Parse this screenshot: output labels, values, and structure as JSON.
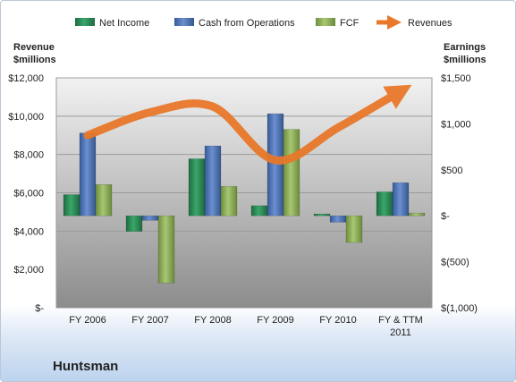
{
  "chart_data": {
    "type": "bar",
    "title": "Huntsman",
    "categories": [
      "FY 2006",
      "FY 2007",
      "FY 2008",
      "FY 2009",
      "FY 2010",
      "FY & TTM 2011"
    ],
    "left_axis": {
      "label_line1": "Revenue",
      "label_line2": "$millions",
      "ylim": [
        0,
        12000
      ],
      "ticks": [
        {
          "value": 12000,
          "label": "$12,000"
        },
        {
          "value": 10000,
          "label": "$10,000"
        },
        {
          "value": 8000,
          "label": "$8,000"
        },
        {
          "value": 6000,
          "label": "$6,000"
        },
        {
          "value": 4000,
          "label": "$4,000"
        },
        {
          "value": 2000,
          "label": "$2,000"
        },
        {
          "value": 0,
          "label": "$-"
        }
      ]
    },
    "right_axis": {
      "label_line1": "Earnings",
      "label_line2": "$millions",
      "ylim": [
        -1000,
        1500
      ],
      "ticks": [
        {
          "value": 1500,
          "label": "$1,500"
        },
        {
          "value": 1000,
          "label": "$1,000"
        },
        {
          "value": 500,
          "label": "$500"
        },
        {
          "value": 0,
          "label": "$-"
        },
        {
          "value": -500,
          "label": "$(500)"
        },
        {
          "value": -1000,
          "label": "$(1,000)"
        }
      ]
    },
    "series": [
      {
        "name": "Net Income",
        "kind": "bar",
        "axis": "right",
        "color": "#2e8b57",
        "values": [
          230,
          -170,
          620,
          110,
          20,
          260
        ]
      },
      {
        "name": "Cash from Operations",
        "kind": "bar",
        "axis": "right",
        "color": "#4f74b5",
        "values": [
          900,
          -50,
          760,
          1110,
          -70,
          360
        ]
      },
      {
        "name": "FCF",
        "kind": "bar",
        "axis": "right",
        "color": "#8fb05a",
        "values": [
          340,
          -730,
          320,
          940,
          -290,
          30
        ]
      },
      {
        "name": "Revenues",
        "kind": "line",
        "axis": "left",
        "color": "#e8782a",
        "values": [
          9000,
          10200,
          10500,
          7700,
          9400,
          11300
        ]
      }
    ],
    "grid": true,
    "legend_position": "top"
  }
}
